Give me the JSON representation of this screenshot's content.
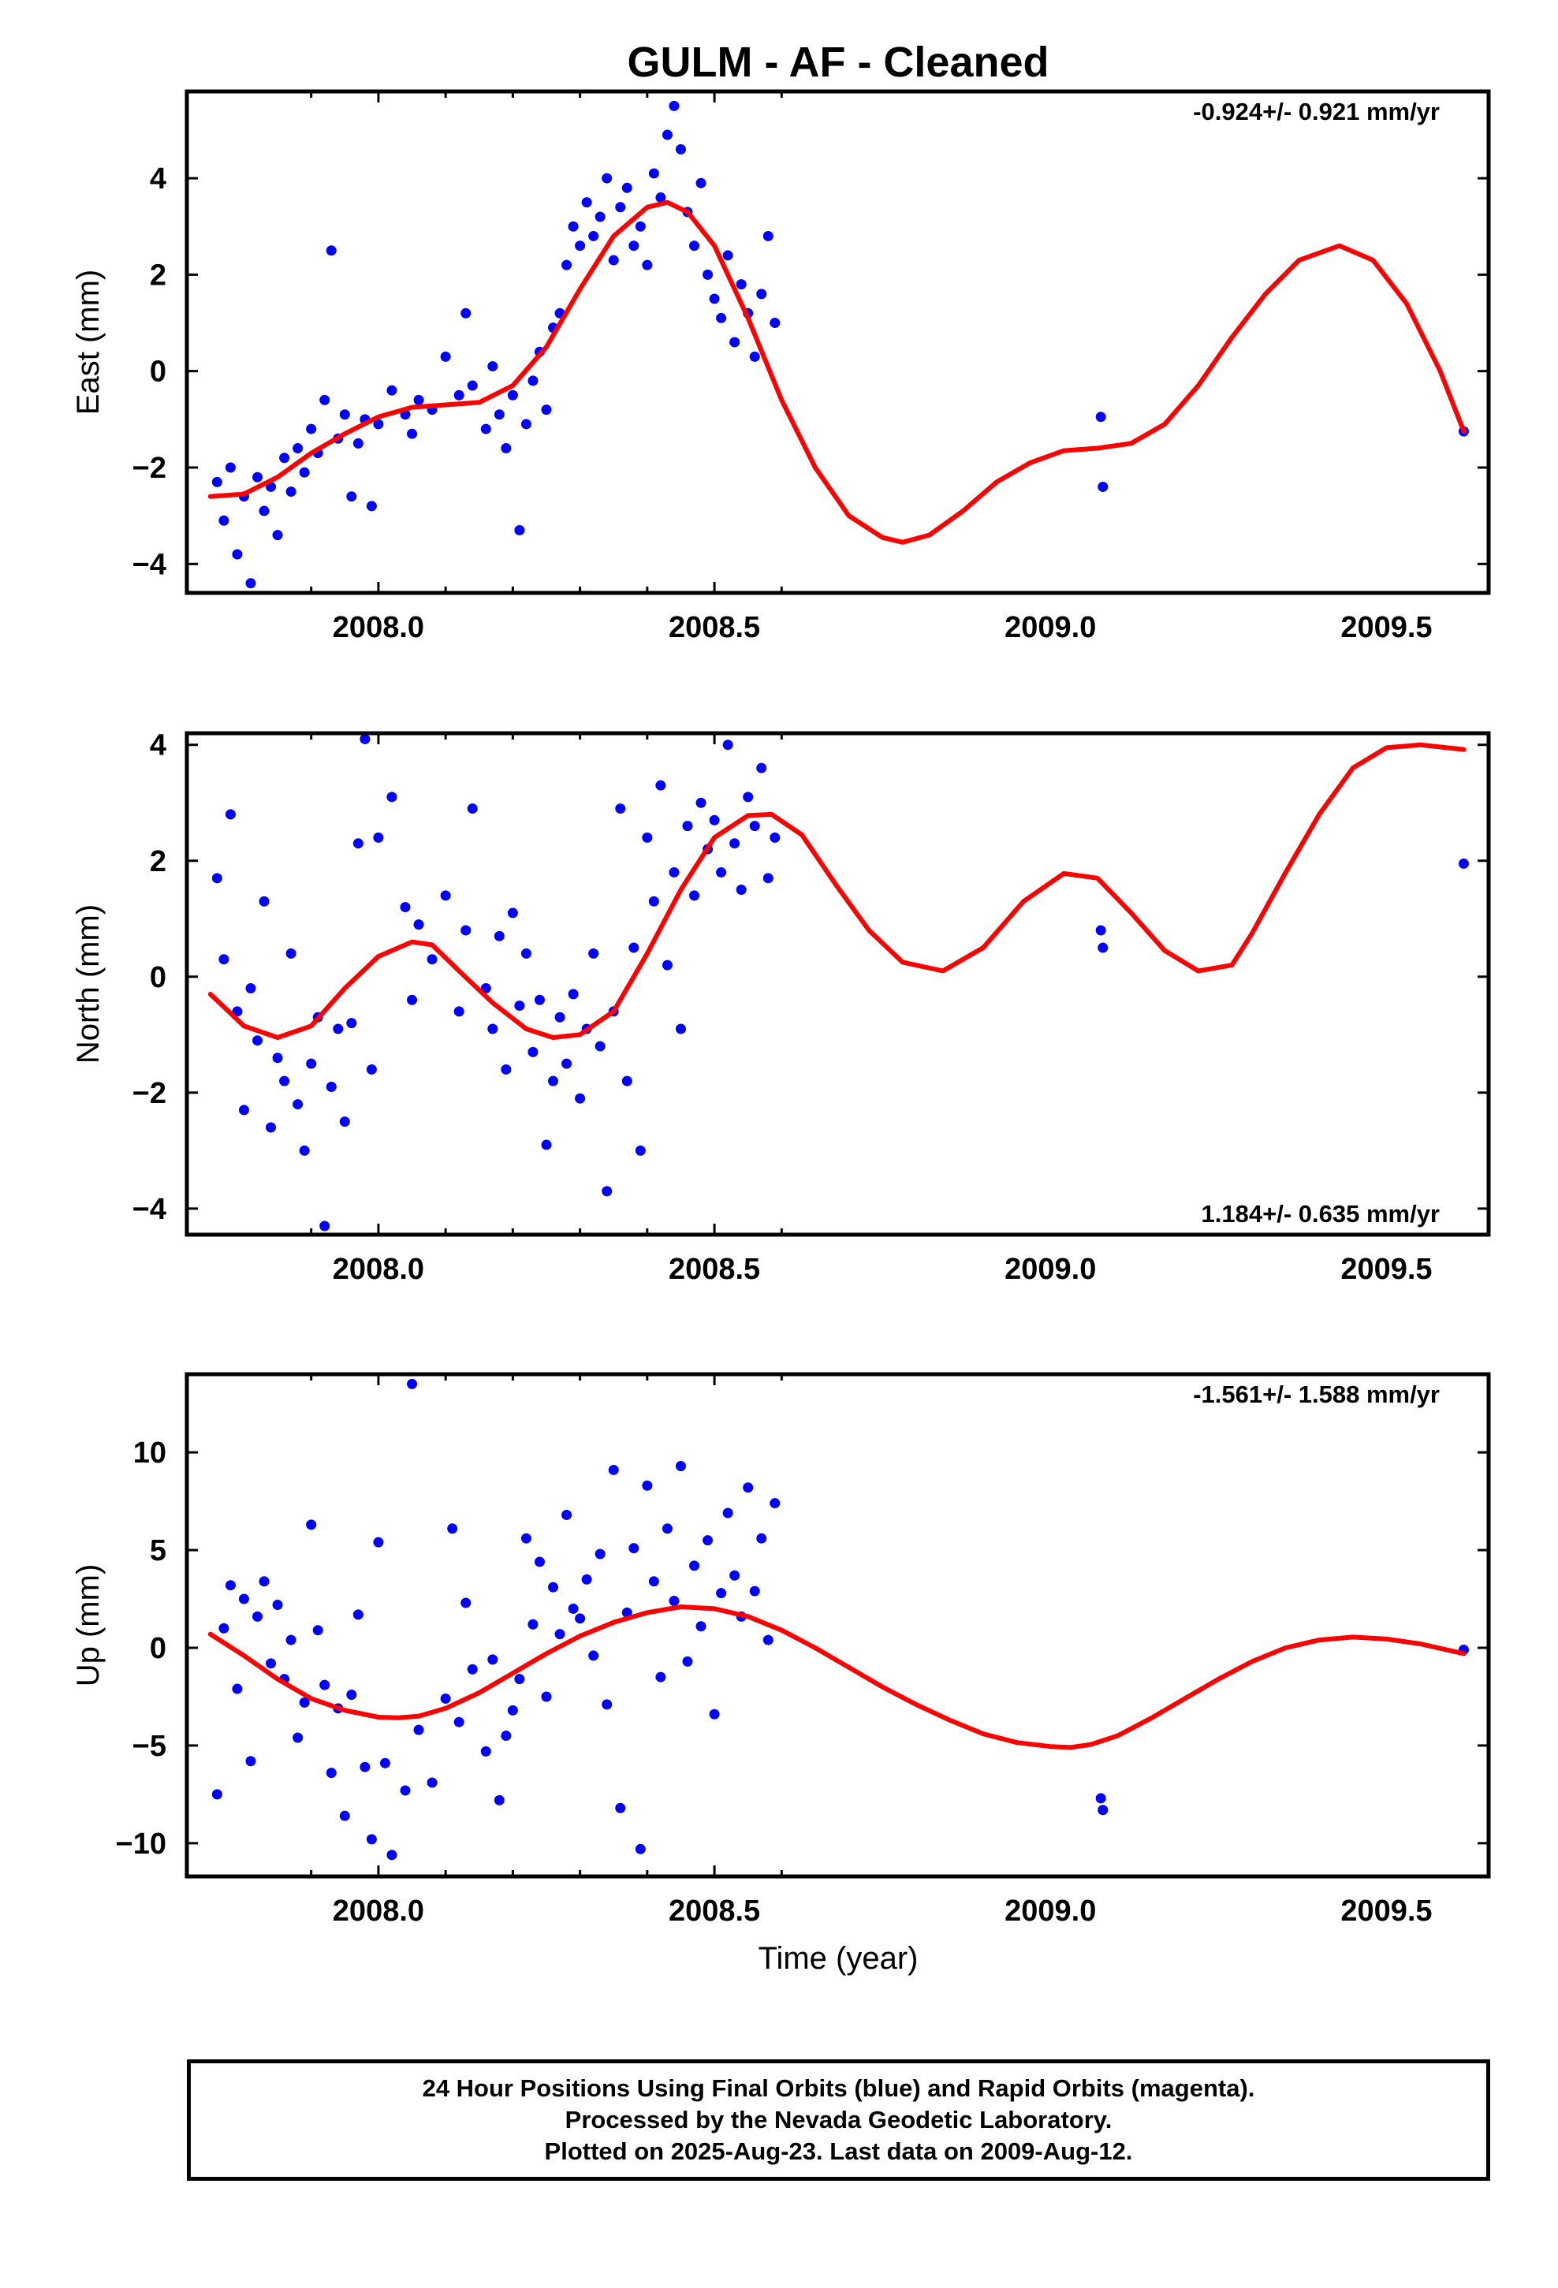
{
  "title": "GULM  - AF - Cleaned",
  "xlabel": "Time (year)",
  "footer": {
    "line1": "24 Hour Positions Using Final Orbits (blue) and Rapid Orbits (magenta).",
    "line2": "Processed by the Nevada Geodetic Laboratory.",
    "line3": "Plotted on 2025-Aug-23. Last data on 2009-Aug-12."
  },
  "colors": {
    "points": "#0000ff",
    "model": "#ff0000",
    "frame": "#000000"
  },
  "chart_data": [
    {
      "type": "scatter",
      "panel": "east",
      "ylabel": "East (mm)",
      "rate": "-0.924+/- 0.921 mm/yr",
      "rate_position": "top-right",
      "xlim": [
        2007.715,
        2009.652
      ],
      "ylim": [
        -4.6,
        5.8
      ],
      "xticks": [
        2008.0,
        2008.5,
        2009.0,
        2009.5
      ],
      "xticklabels": [
        "2008.0",
        "2008.5",
        "2009.0",
        "2009.5"
      ],
      "yticks": [
        -4,
        -2,
        0,
        2,
        4
      ],
      "yticklabels": [
        "−4",
        "−2",
        "0",
        "2",
        "4"
      ],
      "model": {
        "x": [
          2007.75,
          2007.8,
          2007.85,
          2007.9,
          2007.95,
          2008.0,
          2008.05,
          2008.1,
          2008.15,
          2008.2,
          2008.25,
          2008.3,
          2008.35,
          2008.4,
          2008.43,
          2008.46,
          2008.5,
          2008.55,
          2008.6,
          2008.65,
          2008.7,
          2008.75,
          2008.78,
          2008.82,
          2008.87,
          2008.92,
          2008.97,
          2009.02,
          2009.07,
          2009.12,
          2009.17,
          2009.22,
          2009.27,
          2009.32,
          2009.37,
          2009.43,
          2009.48,
          2009.53,
          2009.58,
          2009.615
        ],
        "y": [
          -2.6,
          -2.55,
          -2.2,
          -1.7,
          -1.3,
          -0.95,
          -0.75,
          -0.7,
          -0.65,
          -0.3,
          0.5,
          1.7,
          2.8,
          3.4,
          3.5,
          3.3,
          2.6,
          1.1,
          -0.6,
          -2.0,
          -3.0,
          -3.45,
          -3.55,
          -3.4,
          -2.9,
          -2.3,
          -1.9,
          -1.65,
          -1.6,
          -1.5,
          -1.1,
          -0.3,
          0.7,
          1.6,
          2.3,
          2.6,
          2.3,
          1.4,
          0.0,
          -1.25
        ]
      },
      "points": {
        "x": [
          2007.76,
          2007.77,
          2007.78,
          2007.79,
          2007.8,
          2007.81,
          2007.82,
          2007.83,
          2007.84,
          2007.85,
          2007.86,
          2007.87,
          2007.88,
          2007.89,
          2007.9,
          2007.91,
          2007.92,
          2007.93,
          2007.94,
          2007.95,
          2007.96,
          2007.97,
          2007.98,
          2007.99,
          2008.0,
          2008.02,
          2008.04,
          2008.05,
          2008.06,
          2008.08,
          2008.1,
          2008.12,
          2008.13,
          2008.14,
          2008.16,
          2008.17,
          2008.18,
          2008.19,
          2008.2,
          2008.21,
          2008.22,
          2008.23,
          2008.24,
          2008.25,
          2008.26,
          2008.27,
          2008.28,
          2008.29,
          2008.3,
          2008.31,
          2008.32,
          2008.33,
          2008.34,
          2008.35,
          2008.36,
          2008.37,
          2008.38,
          2008.39,
          2008.4,
          2008.41,
          2008.42,
          2008.43,
          2008.44,
          2008.45,
          2008.46,
          2008.47,
          2008.48,
          2008.49,
          2008.5,
          2008.51,
          2008.52,
          2008.53,
          2008.54,
          2008.55,
          2008.56,
          2008.57,
          2008.58,
          2008.59,
          2009.075,
          2009.078,
          2009.615
        ],
        "y": [
          -2.3,
          -3.1,
          -2.0,
          -3.8,
          -2.6,
          -4.4,
          -2.2,
          -2.9,
          -2.4,
          -3.4,
          -1.8,
          -2.5,
          -1.6,
          -2.1,
          -1.2,
          -1.7,
          -0.6,
          2.5,
          -1.4,
          -0.9,
          -2.6,
          -1.5,
          -1.0,
          -2.8,
          -1.1,
          -0.4,
          -0.9,
          -1.3,
          -0.6,
          -0.8,
          0.3,
          -0.5,
          1.2,
          -0.3,
          -1.2,
          0.1,
          -0.9,
          -1.6,
          -0.5,
          -3.3,
          -1.1,
          -0.2,
          0.4,
          -0.8,
          0.9,
          1.2,
          2.2,
          3.0,
          2.6,
          3.5,
          2.8,
          3.2,
          4.0,
          2.3,
          3.4,
          3.8,
          2.6,
          3.0,
          2.2,
          4.1,
          3.6,
          4.9,
          5.5,
          4.6,
          3.3,
          2.6,
          3.9,
          2.0,
          1.5,
          1.1,
          2.4,
          0.6,
          1.8,
          1.2,
          0.3,
          1.6,
          2.8,
          1.0,
          -0.95,
          -2.4,
          -1.25
        ]
      }
    },
    {
      "type": "scatter",
      "panel": "north",
      "ylabel": "North (mm)",
      "rate": "1.184+/- 0.635 mm/yr",
      "rate_position": "bottom-right",
      "xlim": [
        2007.715,
        2009.652
      ],
      "ylim": [
        -4.45,
        4.2
      ],
      "xticks": [
        2008.0,
        2008.5,
        2009.0,
        2009.5
      ],
      "xticklabels": [
        "2008.0",
        "2008.5",
        "2009.0",
        "2009.5"
      ],
      "yticks": [
        -4,
        -2,
        0,
        2,
        4
      ],
      "yticklabels": [
        "−4",
        "−2",
        "0",
        "2",
        "4"
      ],
      "model": {
        "x": [
          2007.75,
          2007.8,
          2007.85,
          2007.9,
          2007.95,
          2008.0,
          2008.05,
          2008.08,
          2008.12,
          2008.17,
          2008.22,
          2008.26,
          2008.3,
          2008.35,
          2008.4,
          2008.45,
          2008.5,
          2008.55,
          2008.585,
          2008.63,
          2008.68,
          2008.73,
          2008.78,
          2008.84,
          2008.9,
          2008.96,
          2009.02,
          2009.07,
          2009.12,
          2009.17,
          2009.22,
          2009.27,
          2009.3,
          2009.35,
          2009.4,
          2009.45,
          2009.5,
          2009.55,
          2009.59,
          2009.615
        ],
        "y": [
          -0.3,
          -0.85,
          -1.05,
          -0.85,
          -0.2,
          0.35,
          0.6,
          0.55,
          0.1,
          -0.45,
          -0.9,
          -1.05,
          -1.0,
          -0.6,
          0.4,
          1.5,
          2.4,
          2.78,
          2.8,
          2.45,
          1.6,
          0.8,
          0.25,
          0.1,
          0.5,
          1.3,
          1.78,
          1.7,
          1.1,
          0.45,
          0.1,
          0.2,
          0.75,
          1.8,
          2.8,
          3.6,
          3.95,
          4.0,
          3.95,
          3.92
        ]
      },
      "points": {
        "x": [
          2007.76,
          2007.77,
          2007.78,
          2007.79,
          2007.8,
          2007.81,
          2007.82,
          2007.83,
          2007.84,
          2007.85,
          2007.86,
          2007.87,
          2007.88,
          2007.89,
          2007.9,
          2007.91,
          2007.92,
          2007.93,
          2007.94,
          2007.95,
          2007.96,
          2007.97,
          2007.98,
          2007.99,
          2008.0,
          2008.02,
          2008.04,
          2008.05,
          2008.06,
          2008.08,
          2008.1,
          2008.12,
          2008.13,
          2008.14,
          2008.16,
          2008.17,
          2008.18,
          2008.19,
          2008.2,
          2008.21,
          2008.22,
          2008.23,
          2008.24,
          2008.25,
          2008.26,
          2008.27,
          2008.28,
          2008.29,
          2008.3,
          2008.31,
          2008.32,
          2008.33,
          2008.34,
          2008.35,
          2008.36,
          2008.37,
          2008.38,
          2008.39,
          2008.4,
          2008.41,
          2008.42,
          2008.43,
          2008.44,
          2008.45,
          2008.46,
          2008.47,
          2008.48,
          2008.49,
          2008.5,
          2008.51,
          2008.52,
          2008.53,
          2008.54,
          2008.55,
          2008.56,
          2008.57,
          2008.58,
          2008.59,
          2009.075,
          2009.078,
          2009.615
        ],
        "y": [
          1.7,
          0.3,
          2.8,
          -0.6,
          -2.3,
          -0.2,
          -1.1,
          1.3,
          -2.6,
          -1.4,
          -1.8,
          0.4,
          -2.2,
          -3.0,
          -1.5,
          -0.7,
          -4.3,
          -1.9,
          -0.9,
          -2.5,
          -0.8,
          2.3,
          4.1,
          -1.6,
          2.4,
          3.1,
          1.2,
          -0.4,
          0.9,
          0.3,
          1.4,
          -0.6,
          0.8,
          2.9,
          -0.2,
          -0.9,
          0.7,
          -1.6,
          1.1,
          -0.5,
          0.4,
          -1.3,
          -0.4,
          -2.9,
          -1.8,
          -0.7,
          -1.5,
          -0.3,
          -2.1,
          -0.9,
          0.4,
          -1.2,
          -3.7,
          -0.6,
          2.9,
          -1.8,
          0.5,
          -3.0,
          2.4,
          1.3,
          3.3,
          0.2,
          1.8,
          -0.9,
          2.6,
          1.4,
          3.0,
          2.2,
          2.7,
          1.8,
          4.0,
          2.3,
          1.5,
          3.1,
          2.6,
          3.6,
          1.7,
          2.4,
          0.8,
          0.5,
          1.95
        ]
      }
    },
    {
      "type": "scatter",
      "panel": "up",
      "ylabel": "Up (mm)",
      "rate": "-1.561+/- 1.588 mm/yr",
      "rate_position": "top-right",
      "xlim": [
        2007.715,
        2009.652
      ],
      "ylim": [
        -11.7,
        14.0
      ],
      "xticks": [
        2008.0,
        2008.5,
        2009.0,
        2009.5
      ],
      "xticklabels": [
        "2008.0",
        "2008.5",
        "2009.0",
        "2009.5"
      ],
      "yticks": [
        -10,
        -5,
        0,
        5,
        10
      ],
      "yticklabels": [
        "−10",
        "−5",
        "0",
        "5",
        "10"
      ],
      "model": {
        "x": [
          2007.75,
          2007.8,
          2007.85,
          2007.9,
          2007.95,
          2008.0,
          2008.03,
          2008.06,
          2008.1,
          2008.15,
          2008.2,
          2008.25,
          2008.3,
          2008.35,
          2008.4,
          2008.45,
          2008.5,
          2008.55,
          2008.6,
          2008.65,
          2008.7,
          2008.75,
          2008.8,
          2008.85,
          2008.9,
          2008.95,
          2009.0,
          2009.03,
          2009.06,
          2009.1,
          2009.15,
          2009.2,
          2009.25,
          2009.3,
          2009.35,
          2009.4,
          2009.45,
          2009.5,
          2009.55,
          2009.615
        ],
        "y": [
          0.7,
          -0.4,
          -1.6,
          -2.6,
          -3.2,
          -3.55,
          -3.58,
          -3.5,
          -3.1,
          -2.3,
          -1.3,
          -0.3,
          0.6,
          1.3,
          1.8,
          2.1,
          2.0,
          1.6,
          0.9,
          0.0,
          -1.0,
          -2.0,
          -2.9,
          -3.7,
          -4.4,
          -4.85,
          -5.05,
          -5.1,
          -4.95,
          -4.5,
          -3.6,
          -2.6,
          -1.6,
          -0.7,
          0.0,
          0.4,
          0.55,
          0.45,
          0.2,
          -0.3
        ]
      },
      "points": {
        "x": [
          2007.76,
          2007.77,
          2007.78,
          2007.79,
          2007.8,
          2007.81,
          2007.82,
          2007.83,
          2007.84,
          2007.85,
          2007.86,
          2007.87,
          2007.88,
          2007.89,
          2007.9,
          2007.91,
          2007.92,
          2007.93,
          2007.94,
          2007.95,
          2007.96,
          2007.97,
          2007.98,
          2007.99,
          2008.0,
          2008.01,
          2008.02,
          2008.04,
          2008.05,
          2008.06,
          2008.08,
          2008.1,
          2008.11,
          2008.12,
          2008.13,
          2008.14,
          2008.16,
          2008.17,
          2008.18,
          2008.19,
          2008.2,
          2008.21,
          2008.22,
          2008.23,
          2008.24,
          2008.25,
          2008.26,
          2008.27,
          2008.28,
          2008.29,
          2008.3,
          2008.31,
          2008.32,
          2008.33,
          2008.34,
          2008.35,
          2008.36,
          2008.37,
          2008.38,
          2008.39,
          2008.4,
          2008.41,
          2008.42,
          2008.43,
          2008.44,
          2008.45,
          2008.46,
          2008.47,
          2008.48,
          2008.49,
          2008.5,
          2008.51,
          2008.52,
          2008.53,
          2008.54,
          2008.55,
          2008.56,
          2008.57,
          2008.58,
          2008.59,
          2009.075,
          2009.078,
          2009.615
        ],
        "y": [
          -7.5,
          1.0,
          3.2,
          -2.1,
          2.5,
          -5.8,
          1.6,
          3.4,
          -0.8,
          2.2,
          -1.6,
          0.4,
          -4.6,
          -2.8,
          6.3,
          0.9,
          -1.9,
          -6.4,
          -3.1,
          -8.6,
          -2.4,
          1.7,
          -6.1,
          -9.8,
          5.4,
          -5.9,
          -10.6,
          -7.3,
          13.5,
          -4.2,
          -6.9,
          -2.6,
          6.1,
          -3.8,
          2.3,
          -1.1,
          -5.3,
          -0.6,
          -7.8,
          -4.5,
          -3.2,
          -1.6,
          5.6,
          1.2,
          4.4,
          -2.5,
          3.1,
          0.7,
          6.8,
          2.0,
          1.5,
          3.5,
          -0.4,
          4.8,
          -2.9,
          9.1,
          -8.2,
          1.8,
          5.1,
          -10.3,
          8.3,
          3.4,
          -1.5,
          6.1,
          2.4,
          9.3,
          -0.7,
          4.2,
          1.1,
          5.5,
          -3.4,
          2.8,
          6.9,
          3.7,
          1.6,
          8.2,
          2.9,
          5.6,
          0.4,
          7.4,
          -7.7,
          -8.3,
          -0.1
        ]
      }
    }
  ]
}
